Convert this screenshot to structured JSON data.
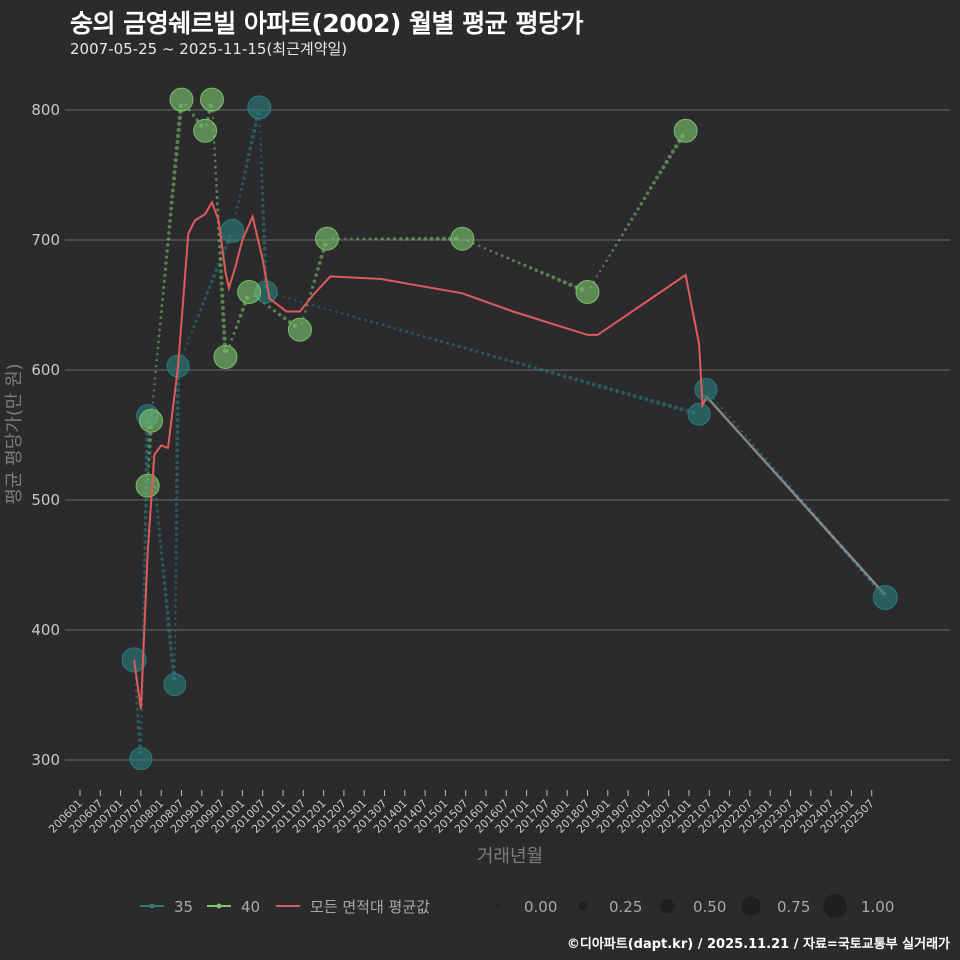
{
  "title": "숭의 금영쉐르빌 아파트(2002) 월별 평균 평당가",
  "subtitle": "2007-05-25 ~ 2025-11-15(최근계약일)",
  "footer": "©디아파트(dapt.kr) / 2025.11.21 / 자료=국토교통부 실거래가",
  "colors": {
    "background": "#2b2b2d",
    "grid": "#6a6a6a",
    "series_35": "#2a7f7f",
    "series_40": "#7fc86e",
    "avg_line": "#e05a5a",
    "connector": "#9a9a9a"
  },
  "chart_data": {
    "type": "line",
    "xlabel": "거래년월",
    "ylabel": "평균 평당가(만 원)",
    "ylim": [
      280,
      830
    ],
    "y_ticks": [
      300,
      400,
      500,
      600,
      700,
      800
    ],
    "x_range": [
      "2006-01",
      "2026-01"
    ],
    "x_tick_labels": [
      "200601",
      "200607",
      "200701",
      "200707",
      "200801",
      "200807",
      "200901",
      "200907",
      "201001",
      "201007",
      "201101",
      "201107",
      "201201",
      "201207",
      "201301",
      "201307",
      "201401",
      "201407",
      "201501",
      "201507",
      "201601",
      "201607",
      "201701",
      "201707",
      "201801",
      "201807",
      "201901",
      "201907",
      "202001",
      "202007",
      "202101",
      "202107",
      "202201",
      "202207",
      "202301",
      "202307",
      "202401",
      "202407",
      "202501",
      "202507"
    ],
    "series": [
      {
        "name": "35",
        "points": [
          {
            "x": "2007-05",
            "y": 377,
            "size": 0.6
          },
          {
            "x": "2007-07",
            "y": 301,
            "size": 0.5
          },
          {
            "x": "2007-09",
            "y": 565,
            "size": 0.5
          },
          {
            "x": "2008-05",
            "y": 358,
            "size": 0.5
          },
          {
            "x": "2008-06",
            "y": 603,
            "size": 0.5
          },
          {
            "x": "2009-10",
            "y": 707,
            "size": 0.55
          },
          {
            "x": "2010-06",
            "y": 802,
            "size": 0.55
          },
          {
            "x": "2010-08",
            "y": 660,
            "size": 0.5
          },
          {
            "x": "2021-04",
            "y": 566,
            "size": 0.5
          },
          {
            "x": "2021-06",
            "y": 585,
            "size": 0.5
          },
          {
            "x": "2025-11",
            "y": 425,
            "size": 0.6
          }
        ]
      },
      {
        "name": "40",
        "points": [
          {
            "x": "2007-09",
            "y": 511,
            "size": 0.55
          },
          {
            "x": "2007-10",
            "y": 561,
            "size": 0.55
          },
          {
            "x": "2008-07",
            "y": 808,
            "size": 0.55
          },
          {
            "x": "2009-02",
            "y": 784,
            "size": 0.55
          },
          {
            "x": "2009-04",
            "y": 808,
            "size": 0.55
          },
          {
            "x": "2009-08",
            "y": 610,
            "size": 0.55
          },
          {
            "x": "2010-03",
            "y": 660,
            "size": 0.55
          },
          {
            "x": "2011-06",
            "y": 631,
            "size": 0.55
          },
          {
            "x": "2012-02",
            "y": 701,
            "size": 0.55
          },
          {
            "x": "2015-06",
            "y": 701,
            "size": 0.55
          },
          {
            "x": "2018-07",
            "y": 660,
            "size": 0.55
          },
          {
            "x": "2020-12",
            "y": 784,
            "size": 0.55
          }
        ]
      },
      {
        "name": "모든 면적대 평균값",
        "points": [
          {
            "x": "2007-05",
            "y": 377
          },
          {
            "x": "2007-07",
            "y": 339
          },
          {
            "x": "2007-09",
            "y": 460
          },
          {
            "x": "2007-11",
            "y": 535
          },
          {
            "x": "2008-01",
            "y": 542
          },
          {
            "x": "2008-03",
            "y": 540
          },
          {
            "x": "2008-06",
            "y": 603
          },
          {
            "x": "2008-09",
            "y": 705
          },
          {
            "x": "2008-11",
            "y": 715
          },
          {
            "x": "2009-02",
            "y": 720
          },
          {
            "x": "2009-04",
            "y": 729
          },
          {
            "x": "2009-06",
            "y": 715
          },
          {
            "x": "2009-08",
            "y": 675
          },
          {
            "x": "2009-09",
            "y": 663
          },
          {
            "x": "2009-11",
            "y": 680
          },
          {
            "x": "2010-01",
            "y": 700
          },
          {
            "x": "2010-04",
            "y": 718
          },
          {
            "x": "2010-07",
            "y": 685
          },
          {
            "x": "2010-09",
            "y": 655
          },
          {
            "x": "2011-02",
            "y": 645
          },
          {
            "x": "2011-06",
            "y": 645
          },
          {
            "x": "2011-10",
            "y": 658
          },
          {
            "x": "2012-03",
            "y": 672
          },
          {
            "x": "2013-06",
            "y": 670
          },
          {
            "x": "2015-06",
            "y": 659
          },
          {
            "x": "2016-09",
            "y": 645
          },
          {
            "x": "2018-07",
            "y": 627
          },
          {
            "x": "2018-10",
            "y": 627
          },
          {
            "x": "2020-12",
            "y": 673
          },
          {
            "x": "2021-04",
            "y": 620
          },
          {
            "x": "2021-05",
            "y": 573
          },
          {
            "x": "2021-06",
            "y": 578
          }
        ]
      }
    ],
    "connector_35_tail": [
      {
        "x": "2021-06",
        "y": 580
      },
      {
        "x": "2025-11",
        "y": 427
      }
    ],
    "size_legend": {
      "title": "",
      "labels": [
        "0.00",
        "0.25",
        "0.50",
        "0.75",
        "1.00"
      ],
      "values": [
        0,
        0.25,
        0.5,
        0.75,
        1.0
      ]
    }
  }
}
